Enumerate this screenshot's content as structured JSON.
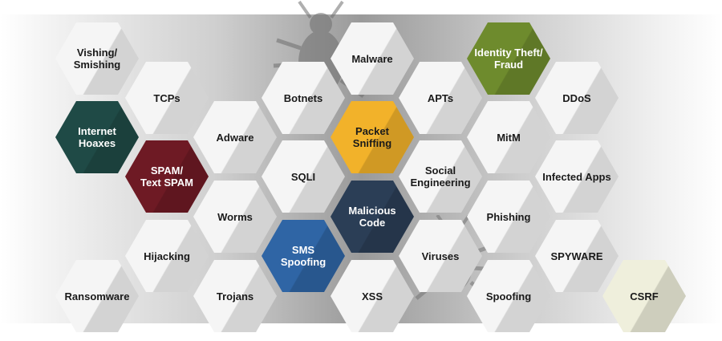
{
  "hexes": [
    {
      "id": "vishing",
      "label": "Vishing/\nSmishing",
      "color": "#f5f5f5",
      "text": "dark-text"
    },
    {
      "id": "tcps",
      "label": "TCPs",
      "color": "#f5f5f5",
      "text": "dark-text"
    },
    {
      "id": "internet-hoaxes",
      "label": "Internet\nHoaxes",
      "color": "#1f4a46",
      "text": "light-text"
    },
    {
      "id": "adware",
      "label": "Adware",
      "color": "#f5f5f5",
      "text": "dark-text"
    },
    {
      "id": "spam",
      "label": "SPAM/\nText SPAM",
      "color": "#6e1a24",
      "text": "light-text"
    },
    {
      "id": "worms",
      "label": "Worms",
      "color": "#f5f5f5",
      "text": "dark-text"
    },
    {
      "id": "hijacking",
      "label": "Hijacking",
      "color": "#f5f5f5",
      "text": "dark-text"
    },
    {
      "id": "ransomware",
      "label": "Ransomware",
      "color": "#f5f5f5",
      "text": "dark-text"
    },
    {
      "id": "trojans",
      "label": "Trojans",
      "color": "#f5f5f5",
      "text": "dark-text"
    },
    {
      "id": "botnets",
      "label": "Botnets",
      "color": "#f5f5f5",
      "text": "dark-text"
    },
    {
      "id": "sqli",
      "label": "SQLI",
      "color": "#f5f5f5",
      "text": "dark-text"
    },
    {
      "id": "sms-spoofing",
      "label": "SMS\nSpoofing",
      "color": "#2f65a5",
      "text": "light-text"
    },
    {
      "id": "malware",
      "label": "Malware",
      "color": "#f5f5f5",
      "text": "dark-text"
    },
    {
      "id": "packet-sniffing",
      "label": "Packet\nSniffing",
      "color": "#f2b22a",
      "text": "dark-text"
    },
    {
      "id": "malicious-code",
      "label": "Malicious\nCode",
      "color": "#2b3e56",
      "text": "light-text"
    },
    {
      "id": "xss",
      "label": "XSS",
      "color": "#f5f5f5",
      "text": "dark-text"
    },
    {
      "id": "apts",
      "label": "APTs",
      "color": "#f5f5f5",
      "text": "dark-text"
    },
    {
      "id": "social-engineering",
      "label": "Social\nEngineering",
      "color": "#f5f5f5",
      "text": "dark-text"
    },
    {
      "id": "viruses",
      "label": "Viruses",
      "color": "#f5f5f5",
      "text": "dark-text"
    },
    {
      "id": "identity-theft",
      "label": "Identity Theft/\nFraud",
      "color": "#6e8b2d",
      "text": "light-text"
    },
    {
      "id": "mitm",
      "label": "MitM",
      "color": "#f5f5f5",
      "text": "dark-text"
    },
    {
      "id": "phishing",
      "label": "Phishing",
      "color": "#f5f5f5",
      "text": "dark-text"
    },
    {
      "id": "spoofing",
      "label": "Spoofing",
      "color": "#f5f5f5",
      "text": "dark-text"
    },
    {
      "id": "ddos",
      "label": "DDoS",
      "color": "#f5f5f5",
      "text": "dark-text"
    },
    {
      "id": "infected-apps",
      "label": "Infected Apps",
      "color": "#f5f5f5",
      "text": "dark-text"
    },
    {
      "id": "spyware",
      "label": "SPYWARE",
      "color": "#f5f5f5",
      "text": "dark-text"
    },
    {
      "id": "csrf",
      "label": "CSRF",
      "color": "#efefdc",
      "text": "dark-text"
    }
  ],
  "decorations": [
    "bug-icon",
    "bug-icon"
  ]
}
